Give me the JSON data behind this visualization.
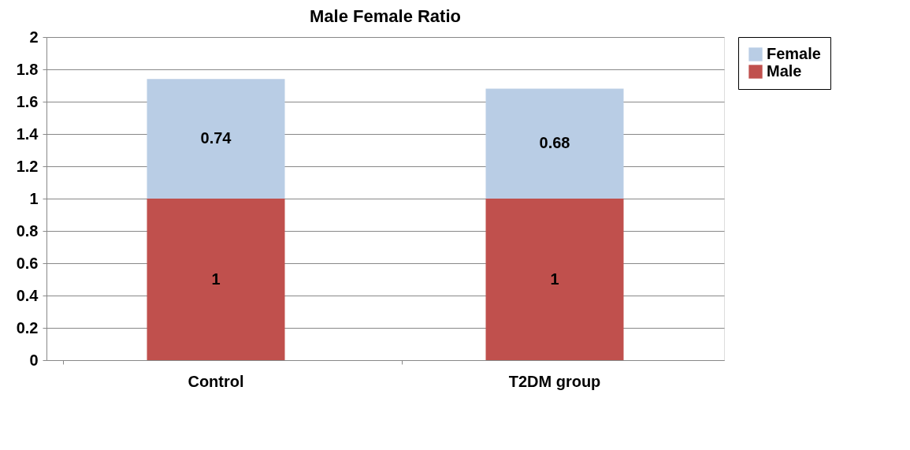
{
  "chart_data": {
    "type": "bar",
    "title": "Male Female Ratio",
    "categories": [
      "Control",
      "T2DM group"
    ],
    "series": [
      {
        "name": "Male",
        "color": "#c0504d",
        "values": [
          1,
          1
        ]
      },
      {
        "name": "Female",
        "color": "#b9cde5",
        "values": [
          0.74,
          0.68
        ]
      }
    ],
    "stacked": true,
    "data_labels": true,
    "ylim": [
      0,
      2
    ],
    "yticks": [
      0,
      0.2,
      0.4,
      0.6,
      0.8,
      1,
      1.2,
      1.4,
      1.6,
      1.8,
      2
    ],
    "grid": "y",
    "legend": "right"
  }
}
